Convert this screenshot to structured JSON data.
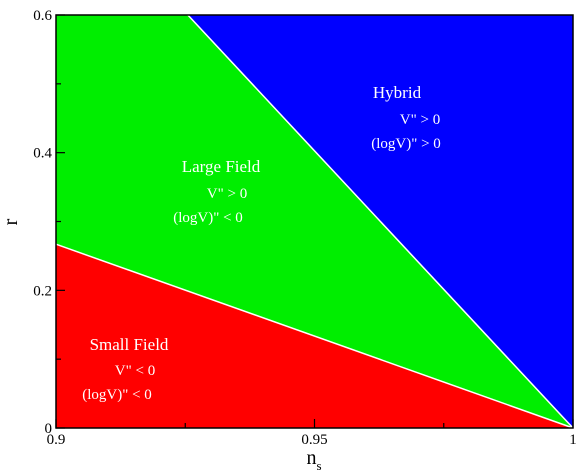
{
  "chart_data": {
    "type": "area",
    "xlabel": "n",
    "xlabel_subscript": "s",
    "ylabel": "r",
    "xlim": [
      0.9,
      1.0
    ],
    "ylim": [
      0,
      0.6
    ],
    "grid": false,
    "x_ticks": [
      {
        "value": 0.9,
        "label": "0.9"
      },
      {
        "value": 0.95,
        "label": "0.95"
      },
      {
        "value": 1.0,
        "label": "1"
      }
    ],
    "y_ticks": [
      {
        "value": 0,
        "label": "0"
      },
      {
        "value": 0.2,
        "label": "0.2"
      },
      {
        "value": 0.4,
        "label": "0.4"
      },
      {
        "value": 0.6,
        "label": "0.6"
      }
    ],
    "regions": [
      {
        "name": "Small Field",
        "condition1": "V\" < 0",
        "condition2": "(logV)\" < 0",
        "color": "#ff0000",
        "polygon": [
          [
            0.9,
            0
          ],
          [
            1.0,
            0
          ],
          [
            0.9,
            0.267
          ]
        ]
      },
      {
        "name": "Large Field",
        "condition1": "V\" > 0",
        "condition2": "(logV)\" < 0",
        "color": "#00ee00",
        "polygon": [
          [
            0.9,
            0.267
          ],
          [
            1.0,
            0
          ],
          [
            0.9255,
            0.6
          ],
          [
            0.9,
            0.6
          ]
        ]
      },
      {
        "name": "Hybrid",
        "condition1": "V\" > 0",
        "condition2": "(logV)\" > 0",
        "color": "#0000ff",
        "polygon": [
          [
            0.9255,
            0.6
          ],
          [
            1.0,
            0
          ],
          [
            1.0,
            0.6
          ]
        ]
      }
    ],
    "boundaries": [
      {
        "from": [
          0.9,
          0.267
        ],
        "to": [
          1.0,
          0
        ],
        "color": "#ffffff"
      },
      {
        "from": [
          0.9255,
          0.6
        ],
        "to": [
          1.0,
          0
        ],
        "color": "#ffffff"
      }
    ]
  }
}
